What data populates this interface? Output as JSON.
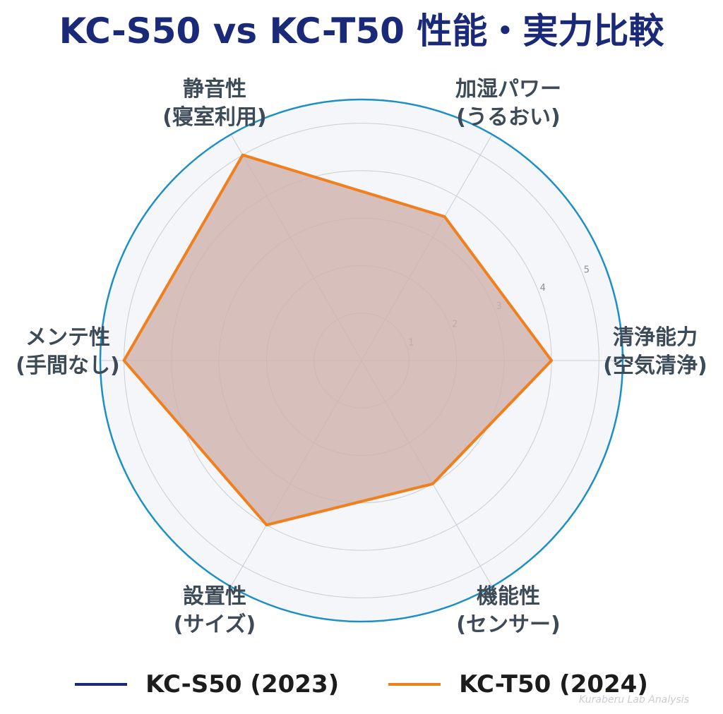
{
  "title": "KC-S50 vs KC-T50 性能・実力比較",
  "credit": "Kuraberu Lab Analysis",
  "colors": {
    "title": "#1a2a78",
    "plot_background": "#f4f6f9",
    "outer_ring": "#1b8fc6",
    "grid": "#c9ced4",
    "fill": "#cfb1ac"
  },
  "chart_data": {
    "type": "radar",
    "axes": [
      {
        "line1": "清浄能力",
        "line2": "(空気清浄)"
      },
      {
        "line1": "加湿パワー",
        "line2": "(うるおい)"
      },
      {
        "line1": "静音性",
        "line2": "(寝室利用)"
      },
      {
        "line1": "メンテ性",
        "line2": "(手間なし)"
      },
      {
        "line1": "設置性",
        "line2": "(サイズ)"
      },
      {
        "line1": "機能性",
        "line2": "(センサー)"
      }
    ],
    "rmax": 5.5,
    "ticks": [
      "1",
      "2",
      "3",
      "4",
      "5"
    ],
    "grid": true,
    "legend_position": "bottom",
    "series": [
      {
        "name": "KC-S50 (2023)",
        "color": "#1a2a78",
        "values": [
          4.0,
          3.5,
          5.0,
          5.0,
          4.0,
          3.0
        ]
      },
      {
        "name": "KC-T50 (2024)",
        "color": "#f07f1e",
        "values": [
          4.0,
          3.5,
          5.0,
          5.0,
          4.0,
          3.0
        ]
      }
    ]
  }
}
